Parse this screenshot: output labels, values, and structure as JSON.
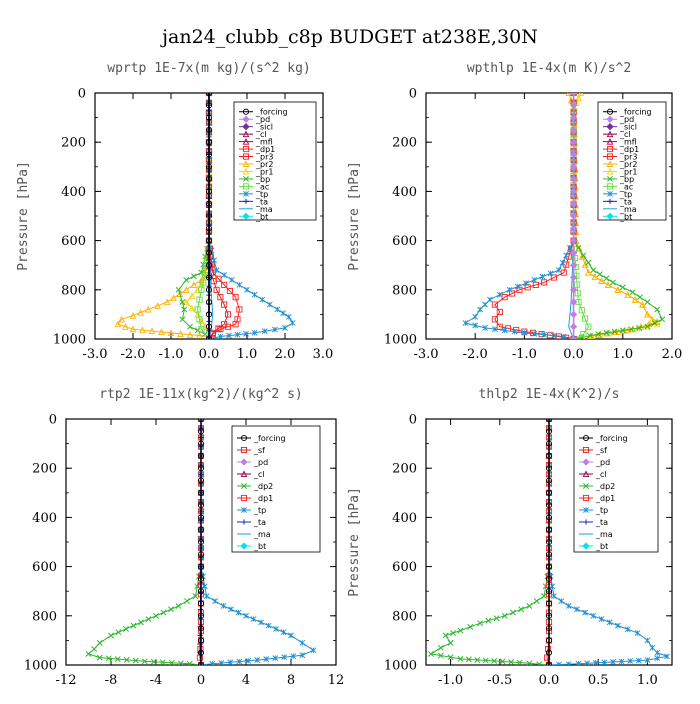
{
  "figure": {
    "title": "jan24_clubb_c8p  BUDGET at238E,30N"
  },
  "colors": {
    "forcing": "#000000",
    "pd": "#c080e0",
    "sicl": "#7030a0",
    "cl": "#8b0045",
    "mfl": "#a0004a",
    "dp1": "#ff2020",
    "dp2": "#2db82d",
    "pr3": "#e02020",
    "pr2": "#ffb000",
    "pr1": "#ffd000",
    "bp": "#2db82d",
    "ac": "#66dd44",
    "tp": "#2090d0",
    "ta": "#2020c0",
    "ma": "#1e9ee0",
    "bt": "#00e5e5",
    "sf": "#e02020"
  },
  "chart_data": [
    {
      "type": "line",
      "title": "wprtp  1E-7x(m kg)/(s^2 kg)",
      "ylabel": "Pressure [hPa]",
      "xlim": [
        -3.0,
        3.0
      ],
      "ylim": [
        1000,
        0
      ],
      "xticks": [
        -3.0,
        -2.0,
        -1.0,
        0.0,
        1.0,
        2.0,
        3.0
      ],
      "xtick_labels": [
        "-3.0",
        "-2.0",
        "-1.0",
        "0.0",
        "1.0",
        "2.0",
        "3.0"
      ],
      "yticks": [
        0,
        200,
        400,
        600,
        800,
        1000
      ],
      "legend": [
        "_forcing",
        "_pd",
        "_sicl",
        "_cl",
        "_mfl",
        "_dp1",
        "_pr3",
        "_pr2",
        "_pr1",
        "_bp",
        "_ac",
        "_tp",
        "_ta",
        "_ma",
        "_bt"
      ],
      "legend_keys": [
        "forcing",
        "pd",
        "sicl",
        "cl",
        "mfl",
        "dp1",
        "pr3",
        "pr2",
        "pr1",
        "bp",
        "ac",
        "tp",
        "ta",
        "ma",
        "bt"
      ],
      "legend_position": "top-right",
      "series": [
        {
          "name": "_pr1",
          "key": "pr1",
          "x": [
            0,
            0,
            0,
            0,
            -0.05,
            -0.1,
            -0.3,
            -0.6,
            -0.3,
            -0.1,
            0
          ],
          "y": [
            0,
            200,
            400,
            600,
            700,
            750,
            800,
            850,
            900,
            950,
            1000
          ]
        },
        {
          "name": "_pr2",
          "key": "pr2",
          "x": [
            0,
            0,
            0,
            -0.05,
            -0.2,
            -0.6,
            -1.1,
            -1.6,
            -2.0,
            -2.3,
            -2.4,
            -2.0,
            0
          ],
          "y": [
            0,
            200,
            600,
            700,
            760,
            800,
            850,
            880,
            905,
            920,
            940,
            960,
            990
          ]
        },
        {
          "name": "_bp",
          "key": "bp",
          "x": [
            0,
            0,
            0,
            -0.2,
            -0.6,
            -0.8,
            -0.7,
            -0.65,
            -0.7,
            -0.5,
            -0.1,
            0
          ],
          "y": [
            0,
            200,
            600,
            730,
            760,
            800,
            850,
            880,
            920,
            950,
            980,
            1000
          ]
        },
        {
          "name": "_ac",
          "key": "ac",
          "x": [
            0,
            0,
            0,
            -0.1,
            -0.2,
            -0.3,
            -0.2,
            0
          ],
          "y": [
            0,
            200,
            600,
            740,
            800,
            880,
            960,
            1000
          ]
        },
        {
          "name": "_dp1",
          "key": "dp1",
          "x": [
            0,
            0,
            0,
            0.1,
            0.4,
            0.7,
            0.8,
            0.75,
            0.7,
            0.3,
            0.1,
            0
          ],
          "y": [
            0,
            200,
            600,
            730,
            780,
            830,
            880,
            920,
            940,
            960,
            980,
            1000
          ]
        },
        {
          "name": "_pr3",
          "key": "pr3",
          "x": [
            0,
            0,
            0,
            0.05,
            0.2,
            0.4,
            0.5,
            0.4,
            0.1,
            0
          ],
          "y": [
            0,
            200,
            600,
            730,
            800,
            860,
            900,
            940,
            975,
            1000
          ]
        },
        {
          "name": "_tp",
          "key": "tp",
          "x": [
            0,
            0,
            0,
            0.2,
            0.6,
            1.0,
            1.4,
            1.8,
            2.1,
            2.2,
            2.0,
            1.2,
            0.3,
            0
          ],
          "y": [
            0,
            200,
            600,
            720,
            760,
            800,
            840,
            880,
            910,
            935,
            955,
            975,
            990,
            1000
          ]
        },
        {
          "name": "_ma",
          "key": "ma",
          "x": [
            0,
            0,
            0,
            0.05,
            0.1,
            0.05,
            0
          ],
          "y": [
            0,
            200,
            600,
            800,
            900,
            970,
            1000
          ]
        },
        {
          "name": "_ta",
          "key": "ta",
          "x": [
            0,
            0,
            0,
            0,
            0
          ],
          "y": [
            0,
            250,
            500,
            750,
            1000
          ]
        },
        {
          "name": "_forcing",
          "key": "forcing",
          "x": [
            0,
            0,
            0,
            0,
            0,
            0,
            0,
            0,
            0,
            0,
            0,
            0,
            0,
            0,
            0,
            0,
            0,
            0,
            0,
            0,
            0
          ],
          "y": [
            0,
            50,
            100,
            150,
            200,
            250,
            300,
            350,
            400,
            450,
            500,
            550,
            600,
            650,
            700,
            750,
            800,
            850,
            900,
            950,
            1000
          ]
        }
      ]
    },
    {
      "type": "line",
      "title": "wpthlp  1E-4x(m K)/s^2",
      "ylabel": "Pressure [hPa]",
      "xlim": [
        -3.0,
        2.0
      ],
      "ylim": [
        1000,
        0
      ],
      "xticks": [
        -3.0,
        -2.0,
        -1.0,
        0.0,
        1.0,
        2.0
      ],
      "xtick_labels": [
        "-3.0",
        "-2.0",
        "-1.0",
        "0.0",
        "1.0",
        "2.0"
      ],
      "yticks": [
        0,
        200,
        400,
        600,
        800,
        1000
      ],
      "legend": [
        "_forcing",
        "_pd",
        "_sicl",
        "_cl",
        "_mfl",
        "_dp1",
        "_pr3",
        "_pr2",
        "_pr1",
        "_bp",
        "_ac",
        "_tp",
        "_ta",
        "_ma",
        "_bt"
      ],
      "legend_keys": [
        "forcing",
        "pd",
        "sicl",
        "cl",
        "mfl",
        "dp1",
        "pr3",
        "pr2",
        "pr1",
        "bp",
        "ac",
        "tp",
        "ta",
        "ma",
        "bt"
      ],
      "legend_position": "top-right",
      "series": [
        {
          "name": "_pr1",
          "key": "pr1",
          "x": [
            0.15,
            0.1,
            0.05,
            0.02,
            0.05,
            0.3,
            0.7,
            1.1,
            1.4,
            1.5,
            1.7,
            1.1,
            0
          ],
          "y": [
            0,
            20,
            40,
            60,
            600,
            730,
            780,
            820,
            860,
            900,
            940,
            965,
            1000
          ]
        },
        {
          "name": "_pr2",
          "key": "pr2",
          "x": [
            -0.1,
            -0.05,
            0,
            0.05,
            0.3,
            0.7,
            1.1,
            1.4,
            1.5,
            1.7,
            1.2,
            0
          ],
          "y": [
            0,
            30,
            60,
            600,
            730,
            780,
            820,
            860,
            900,
            930,
            960,
            1000
          ]
        },
        {
          "name": "_bp",
          "key": "bp",
          "x": [
            0,
            0,
            0,
            0.4,
            0.8,
            1.2,
            1.5,
            1.7,
            1.8,
            1.5,
            0.5,
            0
          ],
          "y": [
            0,
            200,
            600,
            720,
            770,
            810,
            850,
            880,
            920,
            950,
            980,
            1000
          ]
        },
        {
          "name": "_ac",
          "key": "ac",
          "x": [
            0,
            0,
            0.1,
            0.3,
            0.2,
            0
          ],
          "y": [
            0,
            600,
            850,
            950,
            980,
            1000
          ]
        },
        {
          "name": "_dp1",
          "key": "dp1",
          "x": [
            0,
            0,
            0,
            -0.2,
            -0.6,
            -1.1,
            -1.4,
            -1.6,
            -1.5,
            -1.6,
            -1.5,
            -1.0,
            -0.3,
            0
          ],
          "y": [
            0,
            200,
            600,
            730,
            770,
            800,
            830,
            860,
            890,
            920,
            950,
            970,
            990,
            1000
          ]
        },
        {
          "name": "_tp",
          "key": "tp",
          "x": [
            0,
            0,
            0,
            -0.3,
            -0.8,
            -1.3,
            -1.7,
            -1.9,
            -2.0,
            -2.2,
            -1.8,
            -1.0,
            -0.2,
            0
          ],
          "y": [
            0,
            200,
            600,
            720,
            760,
            800,
            840,
            880,
            910,
            935,
            955,
            975,
            990,
            1000
          ]
        },
        {
          "name": "_ma",
          "key": "ma",
          "x": [
            0,
            0,
            -0.05,
            -0.1,
            0
          ],
          "y": [
            0,
            600,
            850,
            950,
            1000
          ]
        },
        {
          "name": "_pd",
          "key": "pd",
          "x": [
            0,
            0,
            0,
            0,
            0,
            0,
            0,
            0,
            0,
            0,
            0,
            0,
            0,
            0,
            0,
            0,
            0,
            0,
            0,
            0,
            0
          ],
          "y": [
            0,
            50,
            100,
            150,
            200,
            250,
            300,
            350,
            400,
            450,
            500,
            550,
            600,
            650,
            700,
            750,
            800,
            850,
            900,
            950,
            1000
          ]
        }
      ]
    },
    {
      "type": "line",
      "title": "rtp2  1E-11x(kg^2)/(kg^2 s)",
      "ylabel": "Pressure [hPa]",
      "xlim": [
        -12,
        12
      ],
      "ylim": [
        1000,
        0
      ],
      "xticks": [
        -12,
        -8,
        -4,
        0,
        4,
        8,
        12
      ],
      "xtick_labels": [
        "-12",
        "-8",
        "-4",
        "0",
        "4",
        "8",
        "12"
      ],
      "yticks": [
        0,
        200,
        400,
        600,
        800,
        1000
      ],
      "legend": [
        "_forcing",
        "_sf",
        "_pd",
        "_cl",
        "_dp2",
        "_dp1",
        "_tp",
        "_ta",
        "_ma",
        "_bt"
      ],
      "legend_keys": [
        "forcing",
        "sf",
        "pd",
        "cl",
        "dp2",
        "dp1",
        "tp",
        "ta",
        "ma",
        "bt"
      ],
      "legend_position": "top-right",
      "series": [
        {
          "name": "_dp2",
          "key": "dp2",
          "x": [
            0,
            0,
            -0.5,
            -2,
            -4,
            -6,
            -8,
            -9,
            -9.5,
            -10,
            -9,
            -5,
            -1,
            0
          ],
          "y": [
            0,
            600,
            720,
            760,
            800,
            840,
            880,
            910,
            935,
            955,
            970,
            985,
            995,
            1000
          ]
        },
        {
          "name": "_dp1",
          "key": "dp1",
          "x": [
            0,
            0,
            0,
            -0.1,
            0
          ],
          "y": [
            0,
            600,
            900,
            970,
            1000
          ]
        },
        {
          "name": "_tp",
          "key": "tp",
          "x": [
            0,
            0,
            0.5,
            2,
            4,
            6,
            8,
            9,
            10,
            9,
            5,
            1,
            0
          ],
          "y": [
            0,
            600,
            720,
            760,
            800,
            840,
            880,
            910,
            940,
            960,
            980,
            995,
            1000
          ]
        },
        {
          "name": "_ta",
          "key": "ta",
          "x": [
            0,
            0,
            -0.1,
            0
          ],
          "y": [
            0,
            600,
            950,
            1000
          ]
        },
        {
          "name": "_forcing",
          "key": "forcing",
          "x": [
            0,
            0,
            0,
            0,
            0,
            0,
            0,
            0,
            0,
            0,
            0,
            0,
            0,
            0,
            0,
            0,
            0,
            0,
            0,
            0,
            0
          ],
          "y": [
            0,
            50,
            100,
            150,
            200,
            250,
            300,
            350,
            400,
            450,
            500,
            550,
            600,
            650,
            700,
            750,
            800,
            850,
            900,
            950,
            1000
          ]
        }
      ]
    },
    {
      "type": "line",
      "title": "thlp2  1E-4x(K^2)/s",
      "ylabel": "Pressure [hPa]",
      "xlim": [
        -1.25,
        1.25
      ],
      "ylim": [
        1000,
        0
      ],
      "xticks": [
        -1.0,
        -0.5,
        0.0,
        0.5,
        1.0
      ],
      "xtick_labels": [
        "-1.0",
        "-0.5",
        "0.0",
        "0.5",
        "1.0"
      ],
      "yticks": [
        0,
        200,
        400,
        600,
        800,
        1000
      ],
      "legend": [
        "_forcing",
        "_sf",
        "_pd",
        "_cl",
        "_dp2",
        "_dp1",
        "_tp",
        "_ta",
        "_ma",
        "_bt"
      ],
      "legend_keys": [
        "forcing",
        "sf",
        "pd",
        "cl",
        "dp2",
        "dp1",
        "tp",
        "ta",
        "ma",
        "bt"
      ],
      "legend_position": "top-right",
      "series": [
        {
          "name": "_dp2",
          "key": "dp2",
          "x": [
            0,
            0,
            -0.05,
            -0.2,
            -0.45,
            -0.7,
            -0.9,
            -1.05,
            -1.0,
            -1.1,
            -1.2,
            -0.9,
            -0.3,
            0
          ],
          "y": [
            0,
            600,
            720,
            760,
            800,
            830,
            860,
            880,
            910,
            930,
            955,
            975,
            990,
            1000
          ]
        },
        {
          "name": "_tp",
          "key": "tp",
          "x": [
            0,
            0,
            0.05,
            0.2,
            0.45,
            0.7,
            0.9,
            1.0,
            1.05,
            1.1,
            1.2,
            1.0,
            0.3,
            0
          ],
          "y": [
            0,
            600,
            720,
            760,
            800,
            840,
            870,
            900,
            930,
            950,
            965,
            980,
            995,
            1000
          ]
        },
        {
          "name": "_dp1",
          "key": "dp1",
          "x": [
            0,
            0,
            0,
            -0.02,
            0
          ],
          "y": [
            0,
            600,
            900,
            970,
            1000
          ]
        },
        {
          "name": "_forcing",
          "key": "forcing",
          "x": [
            0,
            0,
            0,
            0,
            0,
            0,
            0,
            0,
            0,
            0,
            0,
            0,
            0,
            0,
            0,
            0,
            0,
            0,
            0,
            0,
            0
          ],
          "y": [
            0,
            50,
            100,
            150,
            200,
            250,
            300,
            350,
            400,
            450,
            500,
            550,
            600,
            650,
            700,
            750,
            800,
            850,
            900,
            950,
            1000
          ]
        }
      ]
    }
  ]
}
